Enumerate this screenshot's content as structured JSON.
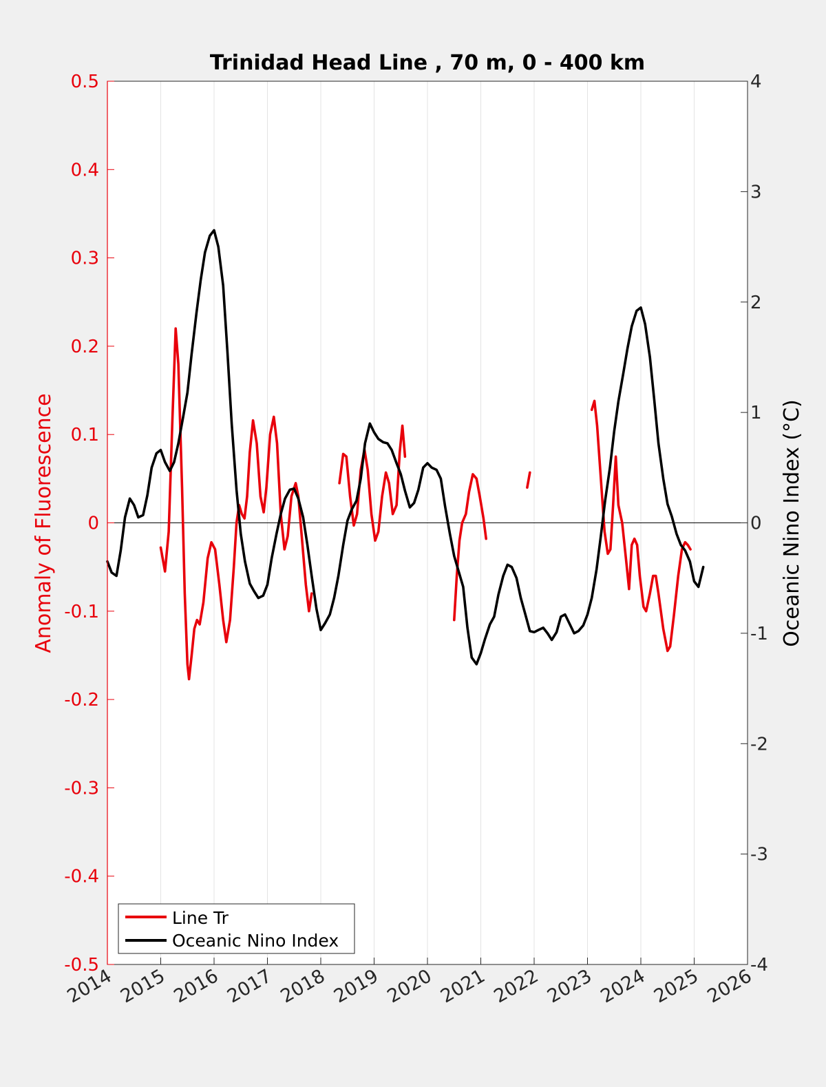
{
  "chart_data": {
    "type": "line",
    "title": "Trinidad Head Line , 70 m, 0 - 400 km",
    "xlabel": "",
    "ylabel_left": "Anomaly of Fluorescence",
    "ylabel_right": "Oceanic Nino Index (°C)",
    "xlim": [
      2014,
      2026
    ],
    "ylim_left": [
      -0.5,
      0.5
    ],
    "ylim_right": [
      -4,
      4
    ],
    "x_ticks": [
      "2014",
      "2015",
      "2016",
      "2017",
      "2018",
      "2019",
      "2020",
      "2021",
      "2022",
      "2023",
      "2024",
      "2025",
      "2026"
    ],
    "y_left_ticks": [
      "-0.5",
      "-0.4",
      "-0.3",
      "-0.2",
      "-0.1",
      "0",
      "0.1",
      "0.2",
      "0.3",
      "0.4",
      "0.5"
    ],
    "y_right_ticks": [
      "-4",
      "-3",
      "-2",
      "-1",
      "0",
      "1",
      "2",
      "3",
      "4"
    ],
    "grid": "vertical",
    "legend_position": "bottom-left",
    "colors": {
      "line_tr": "#e8000b",
      "oni": "#000000",
      "left_axis": "#e8000b",
      "right_axis": "#000000"
    },
    "series": [
      {
        "name": "Line Tr",
        "axis": "left",
        "segments": [
          [
            [
              2015.0,
              -0.028
            ],
            [
              2015.08,
              -0.055
            ],
            [
              2015.15,
              -0.01
            ],
            [
              2015.22,
              0.12
            ],
            [
              2015.28,
              0.22
            ],
            [
              2015.33,
              0.18
            ],
            [
              2015.4,
              0.04
            ],
            [
              2015.45,
              -0.08
            ],
            [
              2015.5,
              -0.16
            ],
            [
              2015.53,
              -0.177
            ],
            [
              2015.58,
              -0.15
            ],
            [
              2015.63,
              -0.12
            ],
            [
              2015.68,
              -0.11
            ],
            [
              2015.73,
              -0.115
            ],
            [
              2015.8,
              -0.09
            ],
            [
              2015.88,
              -0.04
            ],
            [
              2015.95,
              -0.022
            ],
            [
              2016.02,
              -0.03
            ],
            [
              2016.1,
              -0.07
            ],
            [
              2016.17,
              -0.11
            ],
            [
              2016.23,
              -0.135
            ],
            [
              2016.3,
              -0.11
            ],
            [
              2016.37,
              -0.05
            ],
            [
              2016.42,
              0.0
            ],
            [
              2016.47,
              0.02
            ],
            [
              2016.52,
              0.01
            ],
            [
              2016.57,
              0.005
            ],
            [
              2016.62,
              0.03
            ],
            [
              2016.67,
              0.08
            ],
            [
              2016.73,
              0.116
            ],
            [
              2016.8,
              0.09
            ],
            [
              2016.87,
              0.03
            ],
            [
              2016.93,
              0.012
            ],
            [
              2016.98,
              0.04
            ],
            [
              2017.05,
              0.1
            ],
            [
              2017.12,
              0.12
            ],
            [
              2017.18,
              0.09
            ],
            [
              2017.25,
              0.01
            ],
            [
              2017.32,
              -0.03
            ],
            [
              2017.38,
              -0.015
            ],
            [
              2017.45,
              0.03
            ],
            [
              2017.53,
              0.045
            ],
            [
              2017.58,
              0.03
            ],
            [
              2017.65,
              -0.02
            ],
            [
              2017.72,
              -0.07
            ],
            [
              2017.78,
              -0.1
            ],
            [
              2017.83,
              -0.08
            ]
          ],
          [
            [
              2018.35,
              0.045
            ],
            [
              2018.42,
              0.078
            ],
            [
              2018.48,
              0.075
            ],
            [
              2018.55,
              0.03
            ],
            [
              2018.62,
              -0.003
            ],
            [
              2018.68,
              0.01
            ],
            [
              2018.75,
              0.06
            ],
            [
              2018.82,
              0.083
            ],
            [
              2018.88,
              0.06
            ],
            [
              2018.95,
              0.01
            ],
            [
              2019.02,
              -0.02
            ],
            [
              2019.08,
              -0.01
            ],
            [
              2019.15,
              0.03
            ],
            [
              2019.22,
              0.057
            ],
            [
              2019.28,
              0.045
            ],
            [
              2019.35,
              0.01
            ],
            [
              2019.42,
              0.02
            ],
            [
              2019.48,
              0.08
            ],
            [
              2019.53,
              0.11
            ],
            [
              2019.58,
              0.075
            ]
          ],
          [
            [
              2020.5,
              -0.11
            ],
            [
              2020.55,
              -0.06
            ],
            [
              2020.6,
              -0.02
            ],
            [
              2020.65,
              0.0
            ],
            [
              2020.72,
              0.01
            ],
            [
              2020.78,
              0.035
            ],
            [
              2020.85,
              0.055
            ],
            [
              2020.92,
              0.05
            ],
            [
              2020.98,
              0.03
            ],
            [
              2021.05,
              0.005
            ],
            [
              2021.1,
              -0.018
            ]
          ],
          [
            [
              2021.87,
              0.04
            ],
            [
              2021.92,
              0.057
            ]
          ],
          [
            [
              2023.08,
              0.128
            ],
            [
              2023.13,
              0.138
            ],
            [
              2023.18,
              0.11
            ],
            [
              2023.25,
              0.05
            ],
            [
              2023.32,
              -0.01
            ],
            [
              2023.38,
              -0.035
            ],
            [
              2023.43,
              -0.03
            ],
            [
              2023.48,
              0.02
            ],
            [
              2023.53,
              0.075
            ],
            [
              2023.58,
              0.02
            ],
            [
              2023.65,
              0.0
            ],
            [
              2023.72,
              -0.04
            ],
            [
              2023.78,
              -0.075
            ],
            [
              2023.83,
              -0.025
            ],
            [
              2023.88,
              -0.018
            ],
            [
              2023.93,
              -0.025
            ],
            [
              2023.98,
              -0.06
            ],
            [
              2024.05,
              -0.095
            ],
            [
              2024.1,
              -0.1
            ],
            [
              2024.17,
              -0.08
            ],
            [
              2024.23,
              -0.06
            ],
            [
              2024.28,
              -0.06
            ],
            [
              2024.33,
              -0.08
            ],
            [
              2024.42,
              -0.12
            ],
            [
              2024.5,
              -0.145
            ],
            [
              2024.55,
              -0.14
            ],
            [
              2024.62,
              -0.105
            ],
            [
              2024.7,
              -0.06
            ],
            [
              2024.77,
              -0.03
            ],
            [
              2024.83,
              -0.022
            ],
            [
              2024.88,
              -0.025
            ],
            [
              2024.93,
              -0.03
            ]
          ]
        ]
      },
      {
        "name": "Oceanic Nino Index",
        "axis": "right",
        "segments": [
          [
            [
              2014.0,
              -0.35
            ],
            [
              2014.08,
              -0.45
            ],
            [
              2014.17,
              -0.48
            ],
            [
              2014.25,
              -0.25
            ],
            [
              2014.33,
              0.05
            ],
            [
              2014.42,
              0.22
            ],
            [
              2014.5,
              0.16
            ],
            [
              2014.58,
              0.05
            ],
            [
              2014.67,
              0.07
            ],
            [
              2014.75,
              0.25
            ],
            [
              2014.83,
              0.5
            ],
            [
              2014.92,
              0.63
            ],
            [
              2015.0,
              0.66
            ],
            [
              2015.08,
              0.55
            ],
            [
              2015.17,
              0.47
            ],
            [
              2015.25,
              0.55
            ],
            [
              2015.33,
              0.72
            ],
            [
              2015.42,
              0.96
            ],
            [
              2015.5,
              1.18
            ],
            [
              2015.58,
              1.53
            ],
            [
              2015.67,
              1.9
            ],
            [
              2015.75,
              2.2
            ],
            [
              2015.83,
              2.45
            ],
            [
              2015.92,
              2.6
            ],
            [
              2016.0,
              2.65
            ],
            [
              2016.08,
              2.5
            ],
            [
              2016.17,
              2.15
            ],
            [
              2016.25,
              1.55
            ],
            [
              2016.33,
              0.9
            ],
            [
              2016.42,
              0.3
            ],
            [
              2016.5,
              -0.1
            ],
            [
              2016.58,
              -0.35
            ],
            [
              2016.67,
              -0.55
            ],
            [
              2016.75,
              -0.62
            ],
            [
              2016.83,
              -0.68
            ],
            [
              2016.92,
              -0.66
            ],
            [
              2017.0,
              -0.56
            ],
            [
              2017.08,
              -0.32
            ],
            [
              2017.17,
              -0.1
            ],
            [
              2017.25,
              0.08
            ],
            [
              2017.33,
              0.22
            ],
            [
              2017.42,
              0.3
            ],
            [
              2017.5,
              0.31
            ],
            [
              2017.58,
              0.22
            ],
            [
              2017.67,
              0.05
            ],
            [
              2017.75,
              -0.2
            ],
            [
              2017.83,
              -0.48
            ],
            [
              2017.92,
              -0.78
            ],
            [
              2018.0,
              -0.97
            ],
            [
              2018.08,
              -0.91
            ],
            [
              2018.17,
              -0.83
            ],
            [
              2018.25,
              -0.68
            ],
            [
              2018.33,
              -0.48
            ],
            [
              2018.42,
              -0.2
            ],
            [
              2018.5,
              0.02
            ],
            [
              2018.58,
              0.12
            ],
            [
              2018.67,
              0.2
            ],
            [
              2018.75,
              0.4
            ],
            [
              2018.83,
              0.72
            ],
            [
              2018.92,
              0.9
            ],
            [
              2019.0,
              0.82
            ],
            [
              2019.08,
              0.76
            ],
            [
              2019.17,
              0.73
            ],
            [
              2019.25,
              0.72
            ],
            [
              2019.33,
              0.66
            ],
            [
              2019.42,
              0.54
            ],
            [
              2019.5,
              0.44
            ],
            [
              2019.58,
              0.29
            ],
            [
              2019.67,
              0.14
            ],
            [
              2019.75,
              0.18
            ],
            [
              2019.83,
              0.3
            ],
            [
              2019.92,
              0.5
            ],
            [
              2020.0,
              0.54
            ],
            [
              2020.08,
              0.5
            ],
            [
              2020.17,
              0.48
            ],
            [
              2020.25,
              0.4
            ],
            [
              2020.33,
              0.15
            ],
            [
              2020.42,
              -0.1
            ],
            [
              2020.5,
              -0.3
            ],
            [
              2020.58,
              -0.43
            ],
            [
              2020.67,
              -0.58
            ],
            [
              2020.75,
              -0.95
            ],
            [
              2020.83,
              -1.22
            ],
            [
              2020.92,
              -1.28
            ],
            [
              2021.0,
              -1.18
            ],
            [
              2021.08,
              -1.05
            ],
            [
              2021.17,
              -0.92
            ],
            [
              2021.25,
              -0.85
            ],
            [
              2021.33,
              -0.65
            ],
            [
              2021.42,
              -0.48
            ],
            [
              2021.5,
              -0.38
            ],
            [
              2021.58,
              -0.4
            ],
            [
              2021.67,
              -0.5
            ],
            [
              2021.75,
              -0.68
            ],
            [
              2021.83,
              -0.82
            ],
            [
              2021.92,
              -0.98
            ],
            [
              2022.0,
              -0.99
            ],
            [
              2022.08,
              -0.97
            ],
            [
              2022.17,
              -0.95
            ],
            [
              2022.25,
              -1.0
            ],
            [
              2022.33,
              -1.06
            ],
            [
              2022.42,
              -0.99
            ],
            [
              2022.5,
              -0.85
            ],
            [
              2022.58,
              -0.83
            ],
            [
              2022.67,
              -0.92
            ],
            [
              2022.75,
              -1.0
            ],
            [
              2022.83,
              -0.98
            ],
            [
              2022.92,
              -0.93
            ],
            [
              2023.0,
              -0.83
            ],
            [
              2023.08,
              -0.68
            ],
            [
              2023.17,
              -0.42
            ],
            [
              2023.25,
              -0.12
            ],
            [
              2023.33,
              0.2
            ],
            [
              2023.42,
              0.5
            ],
            [
              2023.5,
              0.83
            ],
            [
              2023.58,
              1.1
            ],
            [
              2023.67,
              1.35
            ],
            [
              2023.75,
              1.58
            ],
            [
              2023.83,
              1.78
            ],
            [
              2023.92,
              1.92
            ],
            [
              2024.0,
              1.95
            ],
            [
              2024.08,
              1.8
            ],
            [
              2024.17,
              1.5
            ],
            [
              2024.25,
              1.12
            ],
            [
              2024.33,
              0.72
            ],
            [
              2024.42,
              0.4
            ],
            [
              2024.5,
              0.17
            ],
            [
              2024.58,
              0.06
            ],
            [
              2024.67,
              -0.1
            ],
            [
              2024.75,
              -0.2
            ],
            [
              2024.83,
              -0.25
            ],
            [
              2024.92,
              -0.35
            ],
            [
              2025.0,
              -0.53
            ],
            [
              2025.08,
              -0.58
            ],
            [
              2025.17,
              -0.4
            ]
          ]
        ]
      }
    ]
  }
}
